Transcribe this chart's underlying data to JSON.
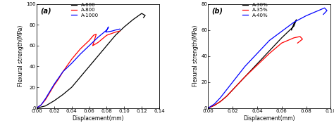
{
  "panel_a": {
    "label": "(a)",
    "xlabel": "Displacement(mm)",
    "ylabel": "Flexural strength(MPa)",
    "xlim": [
      0.0,
      0.14
    ],
    "ylim": [
      0,
      100
    ],
    "xticks": [
      0.0,
      0.02,
      0.04,
      0.06,
      0.08,
      0.1,
      0.12,
      0.14
    ],
    "yticks": [
      0,
      20,
      40,
      60,
      80,
      100
    ],
    "series": [
      {
        "label": "A-600",
        "color": "#000000",
        "x": [
          0.0,
          0.01,
          0.02,
          0.03,
          0.04,
          0.05,
          0.06,
          0.07,
          0.08,
          0.09,
          0.1,
          0.11,
          0.12,
          0.124,
          0.122
        ],
        "y": [
          0,
          2,
          7,
          13,
          20,
          30,
          40,
          50,
          60,
          70,
          78,
          85,
          91,
          89,
          87
        ]
      },
      {
        "label": "A-800",
        "color": "#ff0000",
        "x": [
          0.0,
          0.005,
          0.01,
          0.015,
          0.02,
          0.025,
          0.03,
          0.04,
          0.05,
          0.06,
          0.065,
          0.068,
          0.064,
          0.07,
          0.08,
          0.09,
          0.095
        ],
        "y": [
          0,
          3,
          8,
          15,
          22,
          28,
          35,
          47,
          57,
          65,
          70,
          71,
          60,
          63,
          70,
          73,
          74
        ]
      },
      {
        "label": "A-1000",
        "color": "#0000ff",
        "x": [
          0.0,
          0.005,
          0.01,
          0.015,
          0.02,
          0.025,
          0.03,
          0.04,
          0.05,
          0.06,
          0.07,
          0.08,
          0.082,
          0.079,
          0.086,
          0.09,
          0.095
        ],
        "y": [
          0,
          3,
          9,
          16,
          23,
          29,
          35,
          43,
          52,
          60,
          68,
          75,
          78,
          73,
          74,
          75,
          76
        ]
      }
    ]
  },
  "panel_b": {
    "label": "(b)",
    "xlabel": "Displacement(mm)",
    "ylabel": "Flexural strength(MPa)",
    "xlim": [
      0.0,
      0.1
    ],
    "ylim": [
      0,
      80
    ],
    "xticks": [
      0.0,
      0.02,
      0.04,
      0.06,
      0.08,
      0.1
    ],
    "yticks": [
      0,
      20,
      40,
      60,
      80
    ],
    "series": [
      {
        "label": "A-30%",
        "color": "#000000",
        "x": [
          0.0,
          0.005,
          0.01,
          0.015,
          0.02,
          0.03,
          0.04,
          0.05,
          0.06,
          0.07,
          0.072,
          0.07,
          0.068
        ],
        "y": [
          0,
          2,
          5,
          9,
          14,
          24,
          34,
          44,
          54,
          63,
          68,
          65,
          60
        ]
      },
      {
        "label": "A-35%",
        "color": "#ff0000",
        "x": [
          0.0,
          0.005,
          0.01,
          0.015,
          0.02,
          0.03,
          0.04,
          0.05,
          0.06,
          0.07,
          0.075,
          0.077,
          0.073
        ],
        "y": [
          0,
          2,
          5,
          9,
          14,
          24,
          33,
          42,
          50,
          54,
          55,
          53,
          50
        ]
      },
      {
        "label": "A-40%",
        "color": "#0000ff",
        "x": [
          0.0,
          0.005,
          0.01,
          0.015,
          0.02,
          0.025,
          0.03,
          0.04,
          0.05,
          0.06,
          0.07,
          0.08,
          0.09,
          0.095,
          0.097,
          0.094
        ],
        "y": [
          0,
          3,
          8,
          14,
          20,
          26,
          32,
          42,
          52,
          59,
          66,
          71,
          75,
          77,
          75,
          72
        ]
      }
    ]
  }
}
